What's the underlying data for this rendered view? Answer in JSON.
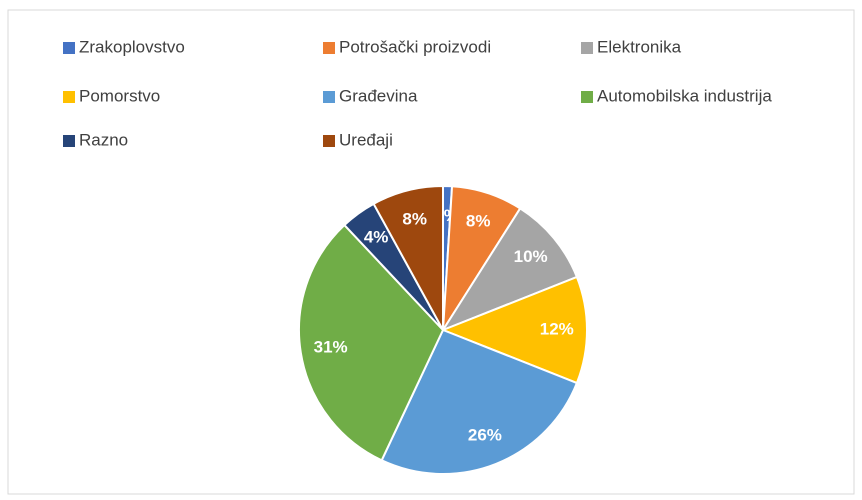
{
  "chart_data": {
    "type": "pie",
    "categories": [
      "Zrakoplovstvo",
      "Potrošački proizvodi",
      "Elektronika",
      "Pomorstvo",
      "Građevina",
      "Automobilska industrija",
      "Razno",
      "Uređaji"
    ],
    "values": [
      1,
      8,
      10,
      12,
      26,
      31,
      4,
      8
    ],
    "value_labels": [
      "1%",
      "8%",
      "10%",
      "12%",
      "26%",
      "31%",
      "4%",
      "8%"
    ],
    "colors": [
      "#4472c4",
      "#ed7d31",
      "#a5a5a5",
      "#ffc000",
      "#5b9bd5",
      "#70ad47",
      "#264478",
      "#9e480e"
    ],
    "legend": "top"
  }
}
